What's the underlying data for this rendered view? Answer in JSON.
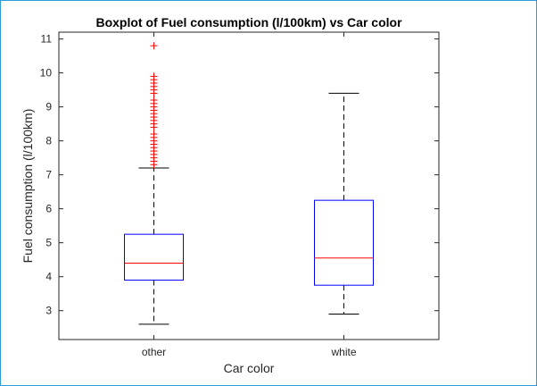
{
  "chart_data": {
    "type": "boxplot",
    "title": "Boxplot of Fuel consumption (l/100km) vs Car color",
    "xlabel": "Car color",
    "ylabel": "Fuel consumption (l/100km)",
    "ylim": [
      2.15,
      11.2
    ],
    "yticks": [
      "3",
      "4",
      "5",
      "6",
      "7",
      "8",
      "9",
      "10",
      "11"
    ],
    "grid": false,
    "categories": [
      "other",
      "white"
    ],
    "boxes": [
      {
        "category": "other",
        "whisker_low": 2.6,
        "q1": 3.9,
        "median": 4.4,
        "q3": 5.25,
        "whisker_high": 7.2,
        "outliers": [
          7.3,
          7.4,
          7.5,
          7.6,
          7.7,
          7.8,
          7.9,
          8.0,
          8.1,
          8.2,
          8.4,
          8.5,
          8.6,
          8.7,
          8.8,
          8.9,
          9.0,
          9.1,
          9.2,
          9.4,
          9.5,
          9.6,
          9.7,
          9.8,
          9.9,
          10.8
        ]
      },
      {
        "category": "white",
        "whisker_low": 2.9,
        "q1": 3.75,
        "median": 4.55,
        "q3": 6.25,
        "whisker_high": 9.4,
        "outliers": []
      }
    ]
  },
  "colors": {
    "box": "#0000ff",
    "median": "#ff0000",
    "whisker": "#000000",
    "outlier": "#ff0000",
    "axes": "#262626",
    "frame": "#2f9bd8"
  }
}
